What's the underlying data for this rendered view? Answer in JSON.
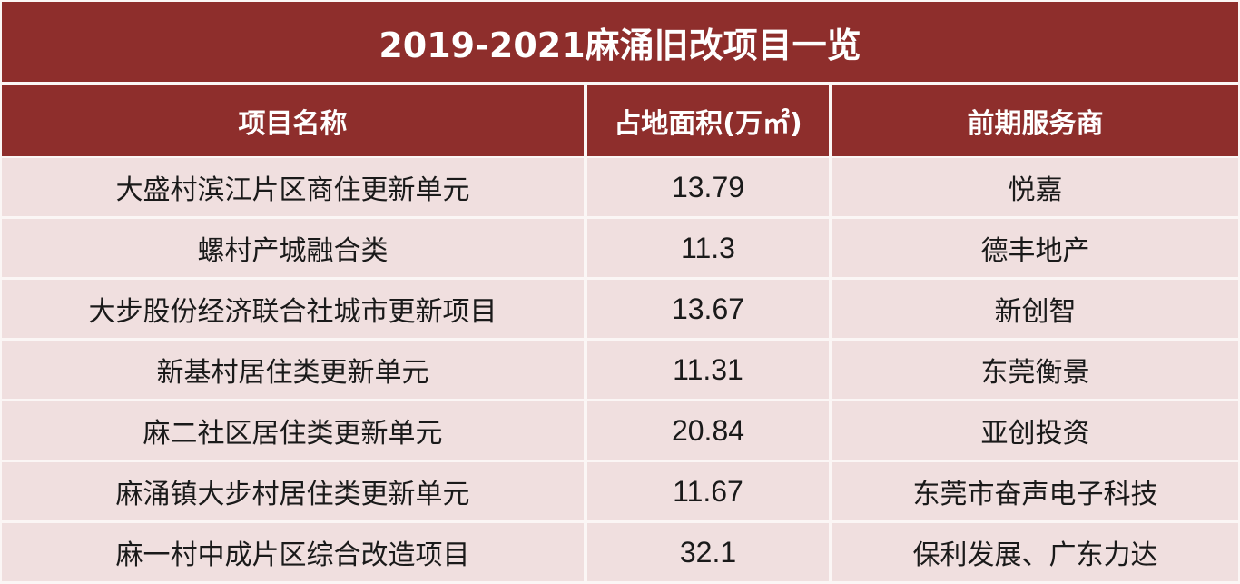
{
  "title": "2019-2021麻涌旧改项目一览",
  "table": {
    "headers": [
      "项目名称",
      "占地面积(万㎡)",
      "前期服务商"
    ],
    "rows": [
      {
        "name": "大盛村滨江片区商住更新单元",
        "area": "13.79",
        "provider": "悦嘉"
      },
      {
        "name": "螺村产城融合类",
        "area": "11.3",
        "provider": "德丰地产"
      },
      {
        "name": "大步股份经济联合社城市更新项目",
        "area": "13.67",
        "provider": "新创智"
      },
      {
        "name": "新基村居住类更新单元",
        "area": "11.31",
        "provider": "东莞衡景"
      },
      {
        "name": "麻二社区居住类更新单元",
        "area": "20.84",
        "provider": "亚创投资"
      },
      {
        "name": "麻涌镇大步村居住类更新单元",
        "area": "11.67",
        "provider": "东莞市奋声电子科技"
      },
      {
        "name": "麻一村中成片区综合改造项目",
        "area": "32.1",
        "provider": "保利发展、广东力达"
      }
    ]
  },
  "colors": {
    "header_bg": "#8e2e2c",
    "header_text": "#ffffff",
    "row_bg": "#f0dfdf",
    "row_text": "#1a1a1a",
    "grid_line": "#fbf6f5"
  }
}
